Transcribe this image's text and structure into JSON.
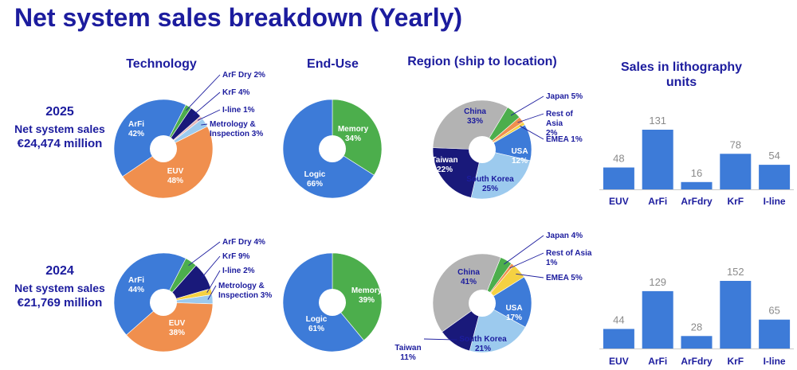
{
  "title": "Net system sales breakdown (Yearly)",
  "column_headers": {
    "technology": "Technology",
    "end_use": "End-Use",
    "region": "Region (ship to location)",
    "units_line1": "Sales in lithography",
    "units_line2": "units"
  },
  "years": [
    {
      "year": "2025",
      "label": "Net system sales",
      "amount": "€24,474 million"
    },
    {
      "year": "2024",
      "label": "Net system sales",
      "amount": "€21,769 million"
    }
  ],
  "colors": {
    "arfi": "#3d7bd8",
    "euv": "#f08f4e",
    "arfdry": "#4cae4c",
    "krf": "#19197a",
    "iline": "#e7b8b8",
    "metrology": "#9ccaee",
    "memory": "#4cae4c",
    "logic": "#3d7bd8",
    "china": "#b3b3b3",
    "japan": "#4cae4c",
    "rest_asia": "#f08f4e",
    "emea": "#f5d142",
    "usa": "#3d7bd8",
    "south_korea": "#9ccaee",
    "taiwan": "#19197a",
    "bar": "#3d7bd8",
    "text": "#1c1c9e"
  },
  "chart_data": [
    {
      "type": "pie",
      "id": "tech-2025",
      "slices": [
        {
          "name": "ArF Dry",
          "value": 2,
          "color": "#4cae4c"
        },
        {
          "name": "KrF",
          "value": 4,
          "color": "#19197a"
        },
        {
          "name": "I-line",
          "value": 1,
          "color": "#e7b8b8"
        },
        {
          "name": "Metrology & Inspection",
          "value": 3,
          "color": "#9ccaee"
        },
        {
          "name": "EUV",
          "value": 48,
          "color": "#f08f4e"
        },
        {
          "name": "ArFi",
          "value": 42,
          "color": "#3d7bd8"
        }
      ],
      "labels": [
        {
          "lines": [
            "ArF Dry 2%"
          ],
          "slice": 0
        },
        {
          "lines": [
            "KrF 4%"
          ],
          "slice": 1
        },
        {
          "lines": [
            "I-line 1%"
          ],
          "slice": 2
        },
        {
          "lines": [
            "Metrology &",
            "Inspection 3%"
          ],
          "slice": 3
        },
        {
          "lines": [
            "EUV",
            "48%"
          ],
          "slice": 4
        },
        {
          "lines": [
            "ArFi",
            "42%"
          ],
          "slice": 5
        }
      ]
    },
    {
      "type": "pie",
      "id": "enduse-2025",
      "slices": [
        {
          "name": "Memory",
          "value": 34,
          "color": "#4cae4c"
        },
        {
          "name": "Logic",
          "value": 66,
          "color": "#3d7bd8"
        }
      ],
      "labels": [
        {
          "lines": [
            "Memory",
            "34%"
          ],
          "slice": 0
        },
        {
          "lines": [
            "Logic",
            "66%"
          ],
          "slice": 1
        }
      ]
    },
    {
      "type": "pie",
      "id": "region-2025",
      "slices": [
        {
          "name": "Japan",
          "value": 5,
          "color": "#4cae4c"
        },
        {
          "name": "Rest of Asia",
          "value": 2,
          "color": "#f08f4e"
        },
        {
          "name": "EMEA",
          "value": 1,
          "color": "#f5d142"
        },
        {
          "name": "USA",
          "value": 12,
          "color": "#3d7bd8"
        },
        {
          "name": "South Korea",
          "value": 25,
          "color": "#9ccaee"
        },
        {
          "name": "Taiwan",
          "value": 22,
          "color": "#19197a"
        },
        {
          "name": "China",
          "value": 33,
          "color": "#b3b3b3"
        }
      ],
      "labels": [
        {
          "lines": [
            "Japan 5%"
          ],
          "slice": 0
        },
        {
          "lines": [
            "Rest of",
            "Asia",
            "2%"
          ],
          "slice": 1
        },
        {
          "lines": [
            "EMEA 1%"
          ],
          "slice": 2
        },
        {
          "lines": [
            "USA",
            "12%"
          ],
          "slice": 3
        },
        {
          "lines": [
            "South Korea",
            "25%"
          ],
          "slice": 4
        },
        {
          "lines": [
            "Taiwan",
            "22%"
          ],
          "slice": 5
        },
        {
          "lines": [
            "China",
            "33%"
          ],
          "slice": 6
        }
      ]
    },
    {
      "type": "bar",
      "id": "units-2025",
      "categories": [
        "EUV",
        "ArFi",
        "ArFdry",
        "KrF",
        "I-line"
      ],
      "values": [
        48,
        131,
        16,
        78,
        54
      ]
    },
    {
      "type": "pie",
      "id": "tech-2024",
      "slices": [
        {
          "name": "ArF Dry",
          "value": 4,
          "color": "#4cae4c"
        },
        {
          "name": "KrF",
          "value": 9,
          "color": "#19197a"
        },
        {
          "name": "I-line",
          "value": 2,
          "color": "#f5d142"
        },
        {
          "name": "Metrology & Inspection",
          "value": 3,
          "color": "#9ccaee"
        },
        {
          "name": "EUV",
          "value": 38,
          "color": "#f08f4e"
        },
        {
          "name": "ArFi",
          "value": 44,
          "color": "#3d7bd8"
        }
      ],
      "labels": [
        {
          "lines": [
            "ArF Dry 4%"
          ],
          "slice": 0
        },
        {
          "lines": [
            "KrF 9%"
          ],
          "slice": 1
        },
        {
          "lines": [
            "I-line 2%"
          ],
          "slice": 2
        },
        {
          "lines": [
            "Metrology &",
            "Inspection 3%"
          ],
          "slice": 3
        },
        {
          "lines": [
            "EUV",
            "38%"
          ],
          "slice": 4
        },
        {
          "lines": [
            "ArFi",
            "44%"
          ],
          "slice": 5
        }
      ]
    },
    {
      "type": "pie",
      "id": "enduse-2024",
      "slices": [
        {
          "name": "Memory",
          "value": 39,
          "color": "#4cae4c"
        },
        {
          "name": "Logic",
          "value": 61,
          "color": "#3d7bd8"
        }
      ],
      "labels": [
        {
          "lines": [
            "Memory",
            "39%"
          ],
          "slice": 0
        },
        {
          "lines": [
            "Logic",
            "61%"
          ],
          "slice": 1
        }
      ]
    },
    {
      "type": "pie",
      "id": "region-2024",
      "slices": [
        {
          "name": "Japan",
          "value": 4,
          "color": "#4cae4c"
        },
        {
          "name": "Rest of Asia",
          "value": 1,
          "color": "#f08f4e"
        },
        {
          "name": "EMEA",
          "value": 5,
          "color": "#f5d142"
        },
        {
          "name": "USA",
          "value": 17,
          "color": "#3d7bd8"
        },
        {
          "name": "South Korea",
          "value": 21,
          "color": "#9ccaee"
        },
        {
          "name": "Taiwan",
          "value": 11,
          "color": "#19197a"
        },
        {
          "name": "China",
          "value": 41,
          "color": "#b3b3b3"
        }
      ],
      "labels": [
        {
          "lines": [
            "Japan 4%"
          ],
          "slice": 0
        },
        {
          "lines": [
            "Rest of Asia",
            "1%"
          ],
          "slice": 1
        },
        {
          "lines": [
            "EMEA 5%"
          ],
          "slice": 2
        },
        {
          "lines": [
            "USA",
            "17%"
          ],
          "slice": 3
        },
        {
          "lines": [
            "South Korea",
            "21%"
          ],
          "slice": 4
        },
        {
          "lines": [
            "Taiwan",
            "11%"
          ],
          "slice": 5
        },
        {
          "lines": [
            "China",
            "41%"
          ],
          "slice": 6
        }
      ]
    },
    {
      "type": "bar",
      "id": "units-2024",
      "categories": [
        "EUV",
        "ArFi",
        "ArFdry",
        "KrF",
        "I-line"
      ],
      "values": [
        44,
        129,
        28,
        152,
        65
      ]
    }
  ]
}
